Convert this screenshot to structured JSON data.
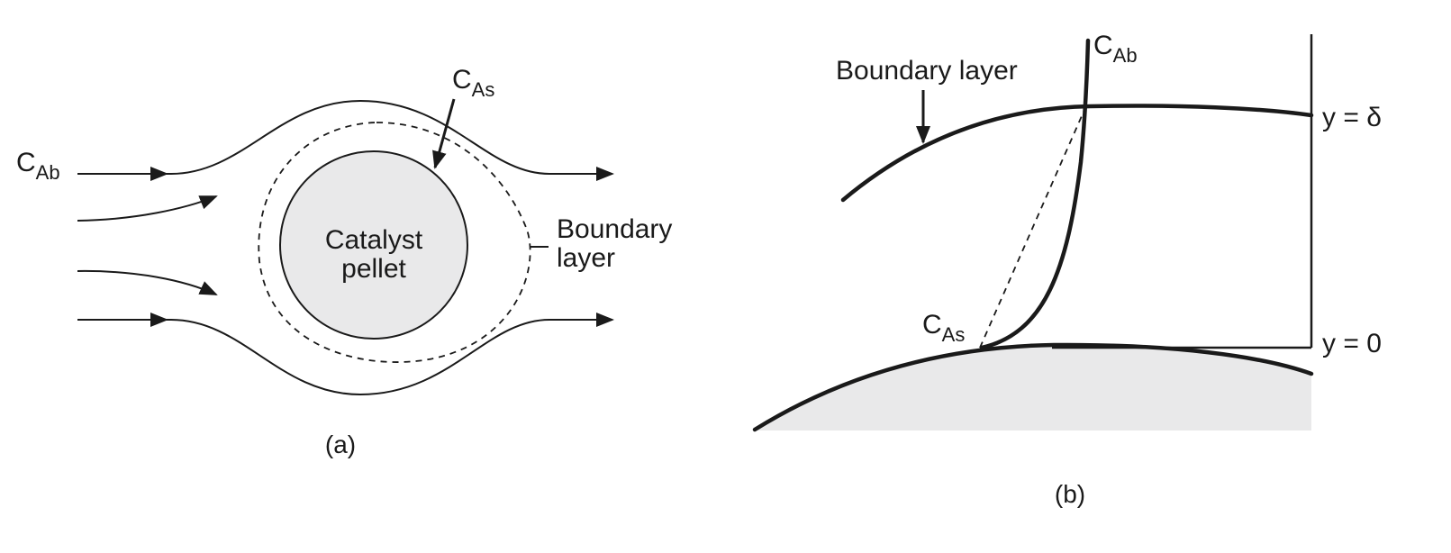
{
  "colors": {
    "ink": "#1a1a1a",
    "pellet_fill": "#e9e9ea",
    "background": "#ffffff"
  },
  "panel_a": {
    "bulk_conc": {
      "main": "C",
      "sub": "Ab"
    },
    "surface_conc": {
      "main": "C",
      "sub": "As"
    },
    "pellet_label_line1": "Catalyst",
    "pellet_label_line2": "pellet",
    "boundary_label_line1": "Boundary",
    "boundary_label_line2": "layer",
    "caption": "(a)"
  },
  "panel_b": {
    "boundary_label": "Boundary layer",
    "bulk_conc": {
      "main": "C",
      "sub": "Ab"
    },
    "surface_conc": {
      "main": "C",
      "sub": "As"
    },
    "y_top": "y = δ",
    "y_bottom": "y = 0",
    "caption": "(b)"
  }
}
